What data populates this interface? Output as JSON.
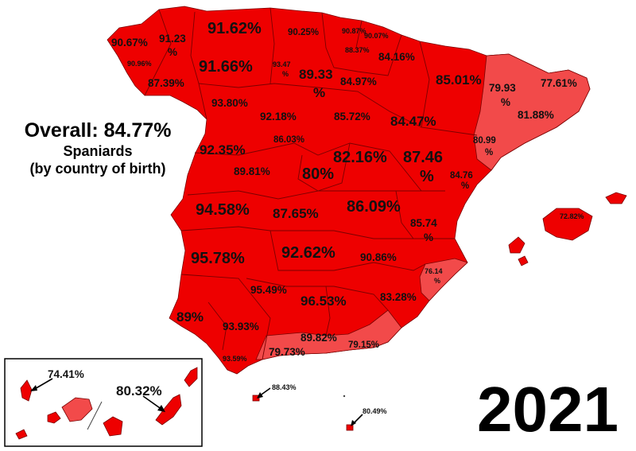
{
  "heading": {
    "overall": "Overall: 84.77%",
    "subtitle_line1": "Spaniards",
    "subtitle_line2": "(by country of birth)"
  },
  "year": "2021",
  "colors": {
    "high": "#ee0000",
    "lower": "#f24a4a",
    "border": "#7a0000",
    "background": "#ffffff"
  },
  "labels": {
    "a_coruna": "90.67%",
    "lugo_a": "91.23",
    "lugo_b": "%",
    "pontevedra": "90.96%",
    "ourense": "87.39%",
    "asturias": "91.62%",
    "cantabria": "90.25%",
    "bizkaia": "90.87%",
    "gipuzkoa": "90.07%",
    "araba": "88.37%",
    "navarra": "84.16%",
    "leon": "91.66%",
    "palencia_a": "93.47",
    "palencia_b": "%",
    "burgos_a": "89.33",
    "burgos_b": "%",
    "la_rioja": "84.97%",
    "huesca": "85.01%",
    "lleida_a": "79.93",
    "lleida_b": "%",
    "girona": "77.61%",
    "barcelona": "81.88%",
    "zamora": "93.80%",
    "valladolid": "92.18%",
    "soria": "85.72%",
    "zaragoza": "84.47%",
    "tarragona_a": "80.99",
    "tarragona_b": "%",
    "segovia": "86.03%",
    "salamanca": "92.35%",
    "avila": "89.81%",
    "madrid": "80%",
    "guadalajara": "82.16%",
    "teruel_a": "87.46",
    "teruel_b": "%",
    "castellon_a": "84.76",
    "castellon_b": "%",
    "caceres": "94.58%",
    "toledo": "87.65%",
    "cuenca": "86.09%",
    "valencia_a": "85.74",
    "valencia_b": "%",
    "baleares": "72.82%",
    "badajoz": "95.78%",
    "ciudad_real": "92.62%",
    "albacete": "90.86%",
    "alicante_a": "76.14",
    "alicante_b": "%",
    "cordoba": "95.49%",
    "jaen": "96.53%",
    "murcia": "83.28%",
    "huelva": "89%",
    "sevilla": "93.93%",
    "granada": "89.82%",
    "malaga": "79.73%",
    "almeria": "79.15%",
    "cadiz": "93.59%",
    "ceuta": "88.43%",
    "melilla": "80.49%",
    "santa_cruz": "74.41%",
    "las_palmas": "80.32%"
  }
}
